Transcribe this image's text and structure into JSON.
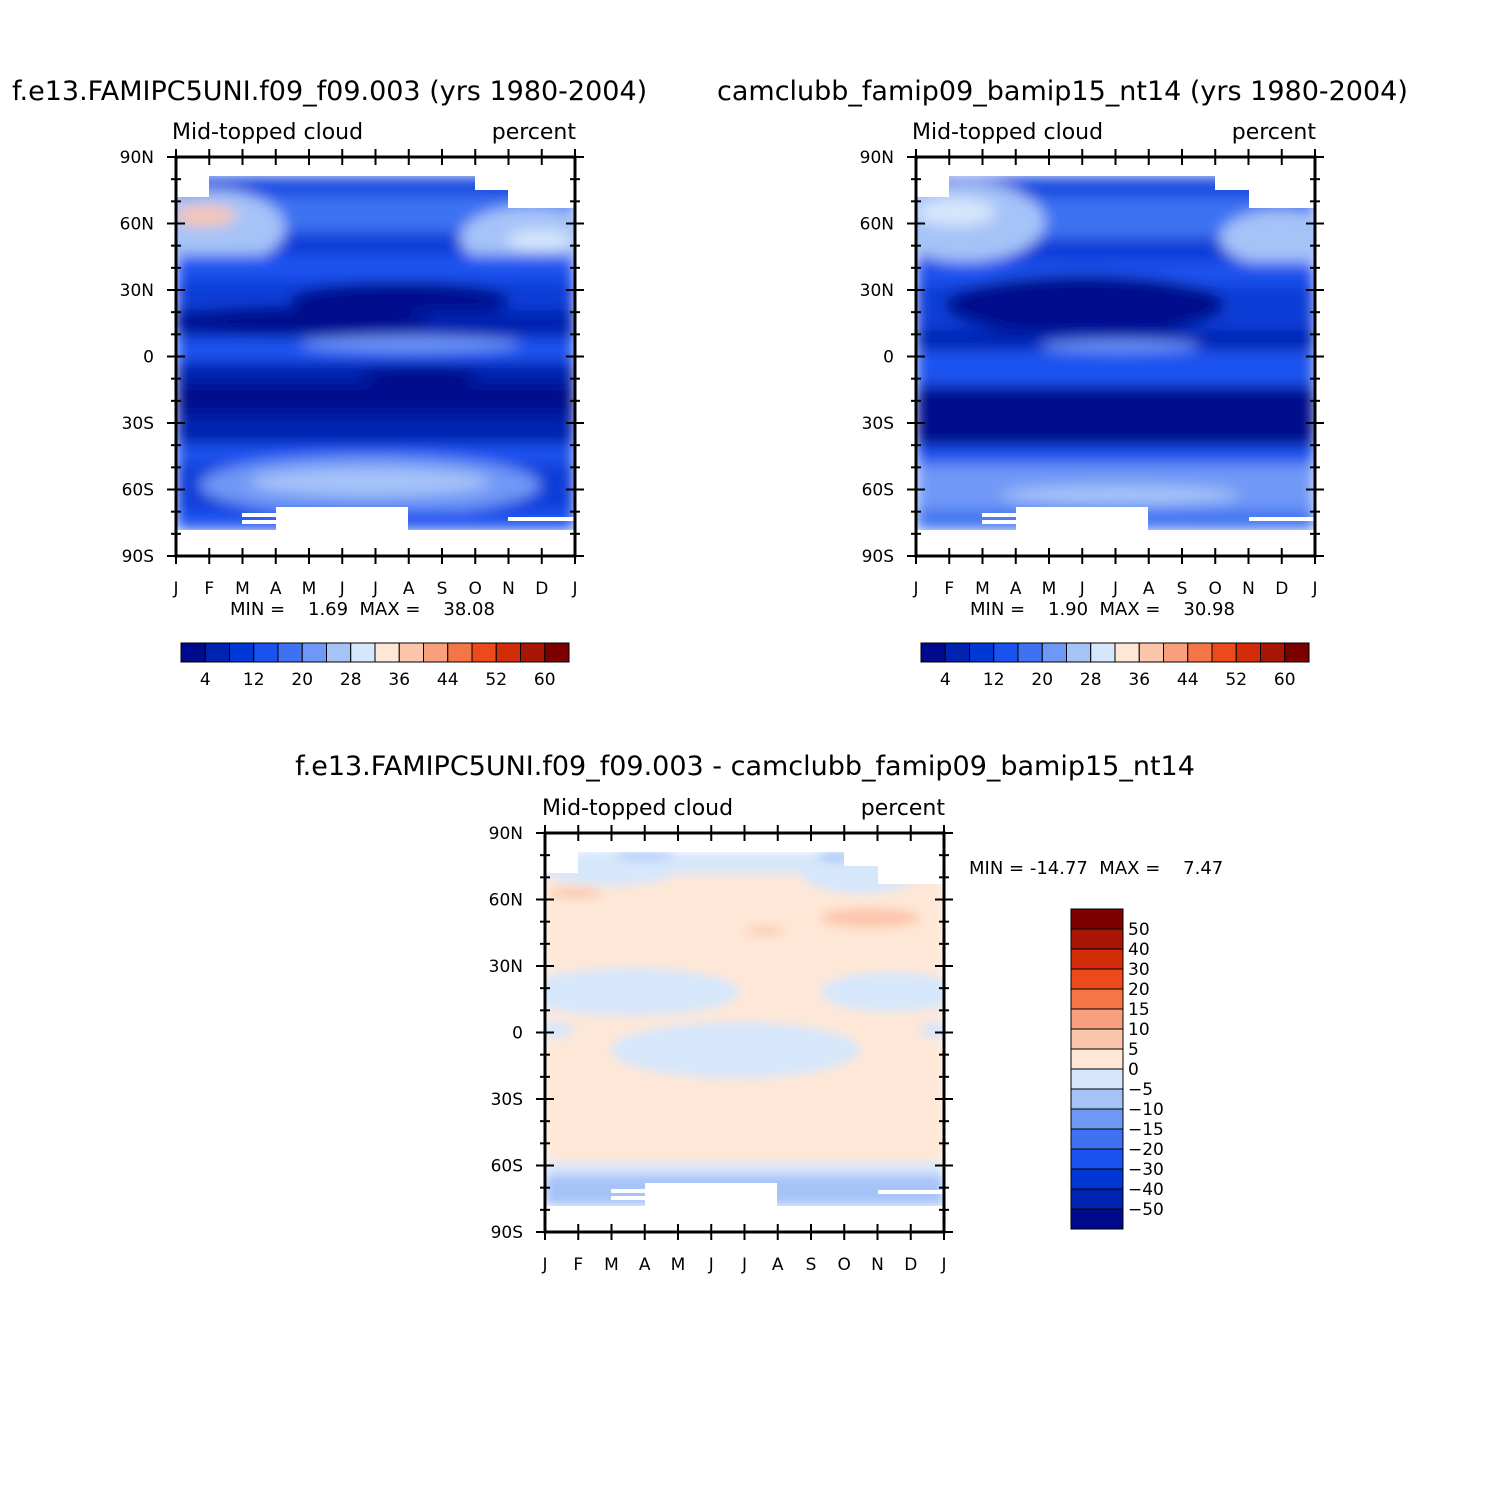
{
  "chart_data": [
    {
      "type": "heatmap",
      "title": "f.e13.FAMIPC5UNI.f09_f09.003 (yrs 1980-2004)",
      "subtitle_left": "Mid-topped cloud",
      "subtitle_right": "percent",
      "x_ticks": [
        "J",
        "F",
        "M",
        "A",
        "M",
        "J",
        "J",
        "A",
        "S",
        "O",
        "N",
        "D",
        "J"
      ],
      "y_ticks": [
        "90N",
        "60N",
        "30N",
        "0",
        "30S",
        "60S",
        "90S"
      ],
      "xlim": [
        0,
        12
      ],
      "ylim": [
        -90,
        90
      ],
      "stats": "MIN =    1.69  MAX =    38.08",
      "min": 1.69,
      "max": 38.08,
      "colorbar": {
        "orientation": "horizontal",
        "colors": [
          "#000a8c",
          "#0022b0",
          "#0038d6",
          "#1a52f0",
          "#3e72f2",
          "#6f98f6",
          "#a6c3f8",
          "#d6e7fb",
          "#fee7d6",
          "#fcc6ad",
          "#f8a07e",
          "#f47646",
          "#ec4a1a",
          "#d22c08",
          "#a81606",
          "#7c0000"
        ],
        "tick_labels": [
          "4",
          "12",
          "20",
          "28",
          "36",
          "44",
          "52",
          "60"
        ]
      }
    },
    {
      "type": "heatmap",
      "title": "camclubb_famip09_bamip15_nt14 (yrs 1980-2004)",
      "subtitle_left": "Mid-topped cloud",
      "subtitle_right": "percent",
      "x_ticks": [
        "J",
        "F",
        "M",
        "A",
        "M",
        "J",
        "J",
        "A",
        "S",
        "O",
        "N",
        "D",
        "J"
      ],
      "y_ticks": [
        "90N",
        "60N",
        "30N",
        "0",
        "30S",
        "60S",
        "90S"
      ],
      "xlim": [
        0,
        12
      ],
      "ylim": [
        -90,
        90
      ],
      "stats": "MIN =    1.90  MAX =    30.98",
      "min": 1.9,
      "max": 30.98,
      "colorbar": {
        "orientation": "horizontal",
        "colors": [
          "#000a8c",
          "#0022b0",
          "#0038d6",
          "#1a52f0",
          "#3e72f2",
          "#6f98f6",
          "#a6c3f8",
          "#d6e7fb",
          "#fee7d6",
          "#fcc6ad",
          "#f8a07e",
          "#f47646",
          "#ec4a1a",
          "#d22c08",
          "#a81606",
          "#7c0000"
        ],
        "tick_labels": [
          "4",
          "12",
          "20",
          "28",
          "36",
          "44",
          "52",
          "60"
        ]
      }
    },
    {
      "type": "heatmap",
      "title": "f.e13.FAMIPC5UNI.f09_f09.003 - camclubb_famip09_bamip15_nt14",
      "subtitle_left": "Mid-topped cloud",
      "subtitle_right": "percent",
      "x_ticks": [
        "J",
        "F",
        "M",
        "A",
        "M",
        "J",
        "J",
        "A",
        "S",
        "O",
        "N",
        "D",
        "J"
      ],
      "y_ticks": [
        "90N",
        "60N",
        "30N",
        "0",
        "30S",
        "60S",
        "90S"
      ],
      "xlim": [
        0,
        12
      ],
      "ylim": [
        -90,
        90
      ],
      "stats": "MIN = -14.77  MAX =    7.47",
      "min": -14.77,
      "max": 7.47,
      "colorbar": {
        "orientation": "vertical",
        "colors": [
          "#000a8c",
          "#0022b0",
          "#0038d6",
          "#1a52f0",
          "#3e72f2",
          "#6f98f6",
          "#a6c3f8",
          "#d6e7fb",
          "#fee7d6",
          "#fcc6ad",
          "#f8a07e",
          "#f47646",
          "#ec4a1a",
          "#d22c08",
          "#a81606",
          "#7c0000"
        ],
        "tick_labels": [
          "50",
          "40",
          "30",
          "20",
          "15",
          "10",
          "5",
          "0",
          "-5",
          "-10",
          "-15",
          "-20",
          "-30",
          "-40",
          "-50"
        ]
      }
    }
  ]
}
